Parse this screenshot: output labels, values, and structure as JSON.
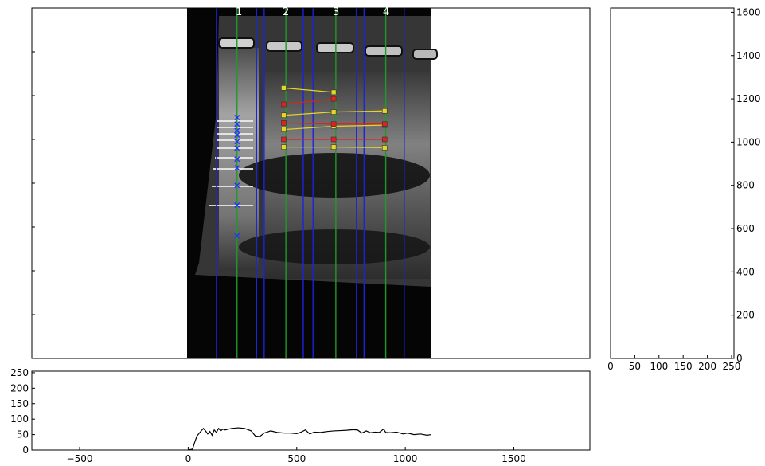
{
  "chart_data": [
    {
      "type": "image",
      "description": "Gel electrophoresis image overlay",
      "xlim": [
        -720,
        1850
      ],
      "ylim": [
        0,
        1600
      ],
      "image_extent": {
        "x": [
          0,
          1120
        ]
      },
      "lanes": {
        "labels": [
          "1",
          "2",
          "3",
          "4"
        ],
        "centers": [
          225,
          450,
          680,
          910
        ],
        "boundaries": [
          130,
          315,
          350,
          530,
          575,
          775,
          810,
          995
        ]
      },
      "ladder_marks": {
        "lane": "1",
        "x": 225,
        "y": [
          560,
          700,
          790,
          870,
          910,
          960,
          990,
          1020,
          1040,
          1070,
          1100
        ],
        "color": "#2233ff",
        "marker": "x"
      },
      "yellow_bands": [
        {
          "x": [
            440,
            670
          ],
          "y": [
            1235,
            1215
          ]
        },
        {
          "x": [
            440,
            670,
            905
          ],
          "y": [
            1110,
            1125,
            1130
          ]
        },
        {
          "x": [
            440,
            670,
            905
          ],
          "y": [
            1045,
            1060,
            1065
          ]
        },
        {
          "x": [
            440,
            670,
            905
          ],
          "y": [
            965,
            965,
            962
          ]
        }
      ],
      "red_bands": [
        {
          "x": [
            440,
            670
          ],
          "y": [
            1160,
            1185
          ]
        },
        {
          "x": [
            440,
            670,
            905
          ],
          "y": [
            1075,
            1070,
            1070
          ]
        },
        {
          "x": [
            440,
            670,
            905
          ],
          "y": [
            1000,
            1000,
            1000
          ]
        }
      ],
      "colors": {
        "lane_boundary": "#1c22dd",
        "lane_center": "#1f9a26",
        "yellow": "#e6d42a",
        "red": "#dd2222"
      }
    },
    {
      "type": "line",
      "position": "right",
      "xlim": [
        0,
        255
      ],
      "ylim": [
        0,
        1620
      ],
      "x_ticks": [
        0,
        50,
        100,
        150,
        200,
        250
      ],
      "y_ticks": [
        0,
        200,
        400,
        600,
        800,
        1000,
        1200,
        1400,
        1600
      ]
    },
    {
      "type": "line",
      "position": "bottom",
      "xlim": [
        -720,
        1850
      ],
      "ylim": [
        0,
        255
      ],
      "x_ticks": [
        -500,
        0,
        500,
        1000,
        1500
      ],
      "y_ticks": [
        0,
        50,
        100,
        150,
        200,
        250
      ],
      "series": [
        {
          "x": [
            0,
            20,
            30,
            40,
            55,
            70,
            80,
            90,
            100,
            110,
            120,
            130,
            140,
            150,
            160,
            170,
            200,
            230,
            260,
            290,
            310,
            330,
            350,
            380,
            410,
            440,
            470,
            500,
            520,
            540,
            560,
            580,
            610,
            640,
            670,
            700,
            730,
            760,
            780,
            800,
            820,
            840,
            860,
            880,
            900,
            910,
            930,
            960,
            990,
            1010,
            1040,
            1070,
            1100,
            1120
          ],
          "y": [
            0,
            3,
            25,
            45,
            58,
            70,
            62,
            52,
            60,
            48,
            65,
            57,
            70,
            62,
            68,
            65,
            70,
            72,
            70,
            62,
            45,
            44,
            55,
            62,
            57,
            55,
            55,
            53,
            58,
            65,
            52,
            58,
            57,
            60,
            62,
            63,
            64,
            66,
            65,
            55,
            62,
            56,
            58,
            57,
            68,
            57,
            56,
            58,
            52,
            55,
            50,
            52,
            48,
            50
          ],
          "color": "#000000"
        }
      ]
    }
  ],
  "lane_numbers": [
    "1",
    "2",
    "3",
    "4"
  ]
}
